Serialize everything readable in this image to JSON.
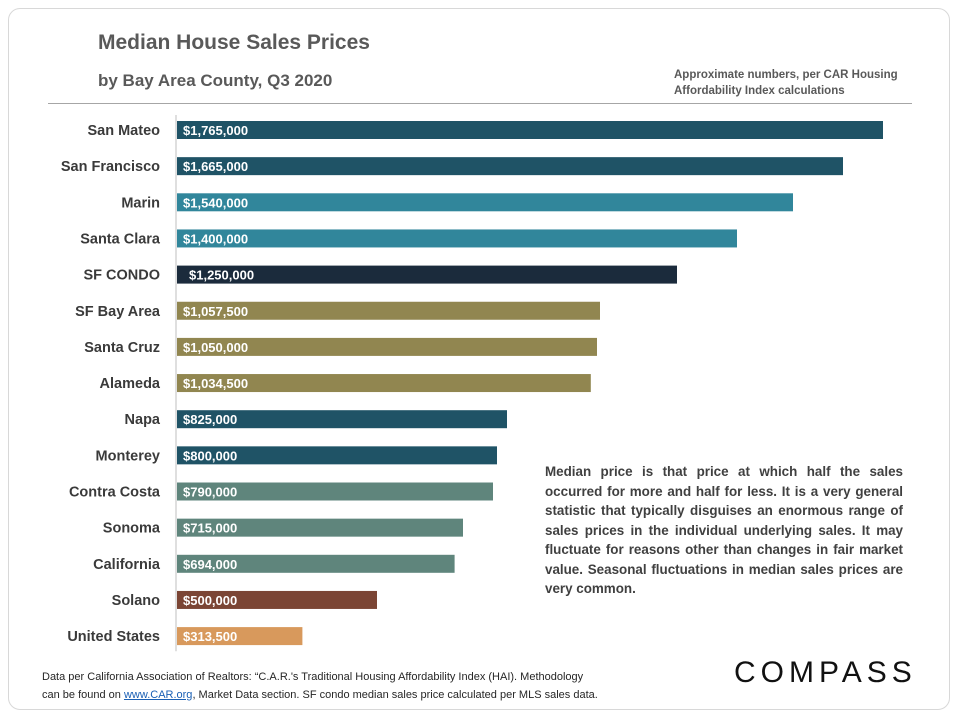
{
  "header": {
    "title": "Median House Sales Prices",
    "subtitle": "by Bay Area County, Q3 2020",
    "note_line1": "Approximate numbers, per CAR Housing",
    "note_line2": "Affordability Index calculations"
  },
  "description": "Median price is that price at which half the sales occurred for more and half for less. It is a very general statistic that typically disguises an enormous range of sales prices in the individual underlying sales. It may fluctuate for reasons other than changes in fair market value. Seasonal fluctuations in median sales prices are very common.",
  "footer": {
    "line1": "Data per California Association of Realtors: “C.A.R.'s Traditional Housing Affordability Index (HAI). Methodology",
    "line2_prefix": "can be found on ",
    "link_text": "www.CAR.org",
    "line2_suffix": ",  Market Data section. SF condo median sales price calculated per MLS sales data."
  },
  "logo": {
    "text": "COMPASS"
  },
  "colors": {
    "teal_dark": "#1f5366",
    "teal_mid": "#31869b",
    "navy": "#1b2b3c",
    "olive": "#918650",
    "sage": "#5f857c",
    "brown": "#7b4534",
    "orange": "#d8995c"
  },
  "chart_data": {
    "type": "bar",
    "orientation": "horizontal",
    "title": "Median House Sales Prices",
    "subtitle": "by Bay Area County, Q3 2020",
    "xlim": [
      0,
      1800000
    ],
    "categories": [
      "San Mateo",
      "San Francisco",
      "Marin",
      "Santa Clara",
      "SF CONDO",
      "SF Bay Area",
      "Santa Cruz",
      "Alameda",
      "Napa",
      "Monterey",
      "Contra Costa",
      "Sonoma",
      "California",
      "Solano",
      "United States"
    ],
    "values": [
      1765000,
      1665000,
      1540000,
      1400000,
      1250000,
      1057500,
      1050000,
      1034500,
      825000,
      800000,
      790000,
      715000,
      694000,
      500000,
      313500
    ],
    "value_labels": [
      "$1,765,000",
      "$1,665,000",
      "$1,540,000",
      "$1,400,000",
      "$1,250,000",
      "$1,057,500",
      "$1,050,000",
      "$1,034,500",
      "$825,000",
      "$800,000",
      "$790,000",
      "$715,000",
      "$694,000",
      "$500,000",
      "$313,500"
    ],
    "bar_colors": [
      "#1f5366",
      "#1f5366",
      "#31869b",
      "#31869b",
      "#1b2b3c",
      "#918650",
      "#918650",
      "#918650",
      "#1f5366",
      "#1f5366",
      "#5f857c",
      "#5f857c",
      "#5f857c",
      "#7b4534",
      "#d8995c"
    ],
    "value_label_colors": [
      "#ffffff",
      "#ffffff",
      "#ffffff",
      "#ffffff",
      "#ffffff",
      "#ffffff",
      "#ffffff",
      "#ffffff",
      "#ffffff",
      "#ffffff",
      "#ffffff",
      "#ffffff",
      "#ffffff",
      "#ffffff",
      "#1a1a1a"
    ],
    "grid": false,
    "legend": "none"
  }
}
